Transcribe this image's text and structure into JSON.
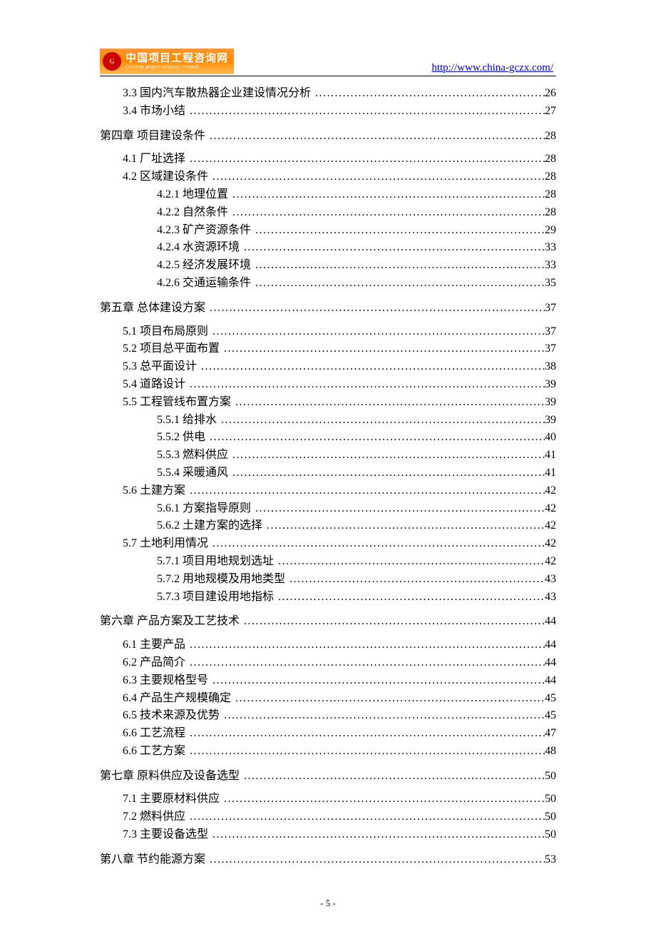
{
  "header": {
    "logo_cn": "中国项目工程咨询网",
    "logo_en": "Chinese project advisory network",
    "logo_mark": "G",
    "url": "http://www.china-gczx.com/"
  },
  "footer": {
    "page_label": "- 5 -"
  },
  "toc": {
    "entries": [
      {
        "level": "1-cont",
        "label": "3.3 国内汽车散热器企业建设情况分析",
        "page": "26"
      },
      {
        "level": "1-cont",
        "label": "3.4 市场小结",
        "page": "27"
      },
      {
        "level": "0",
        "label": "第四章  项目建设条件",
        "page": "28"
      },
      {
        "level": "1",
        "label": "4.1 厂址选择",
        "page": "28"
      },
      {
        "level": "1",
        "label": "4.2 区域建设条件",
        "page": "28"
      },
      {
        "level": "2",
        "label": "4.2.1 地理位置",
        "page": "28"
      },
      {
        "level": "2",
        "label": "4.2.2 自然条件",
        "page": "28"
      },
      {
        "level": "2",
        "label": "4.2.3 矿产资源条件",
        "page": "29"
      },
      {
        "level": "2",
        "label": "4.2.4 水资源环境",
        "page": "33"
      },
      {
        "level": "2",
        "label": "4.2.5 经济发展环境",
        "page": "33"
      },
      {
        "level": "2",
        "label": "4.2.6 交通运输条件",
        "page": "35"
      },
      {
        "level": "0",
        "label": "第五章  总体建设方案",
        "page": "37"
      },
      {
        "level": "1",
        "label": "5.1 项目布局原则",
        "page": "37"
      },
      {
        "level": "1",
        "label": "5.2 项目总平面布置",
        "page": "37"
      },
      {
        "level": "1",
        "label": "5.3 总平面设计",
        "page": "38"
      },
      {
        "level": "1",
        "label": "5.4 道路设计",
        "page": "39"
      },
      {
        "level": "1",
        "label": "5.5 工程管线布置方案",
        "page": "39"
      },
      {
        "level": "2",
        "label": "5.5.1 给排水",
        "page": "39"
      },
      {
        "level": "2",
        "label": "5.5.2 供电",
        "page": "40"
      },
      {
        "level": "2",
        "label": "5.5.3 燃料供应",
        "page": "41"
      },
      {
        "level": "2",
        "label": "5.5.4 采暖通风",
        "page": "41"
      },
      {
        "level": "1",
        "label": "5.6 土建方案",
        "page": "42"
      },
      {
        "level": "2",
        "label": "5.6.1 方案指导原则",
        "page": "42"
      },
      {
        "level": "2",
        "label": "5.6.2 土建方案的选择",
        "page": "42"
      },
      {
        "level": "1",
        "label": "5.7 土地利用情况",
        "page": "42"
      },
      {
        "level": "2",
        "label": "5.7.1 项目用地规划选址",
        "page": "42"
      },
      {
        "level": "2",
        "label": "5.7.2 用地规模及用地类型",
        "page": "43"
      },
      {
        "level": "2",
        "label": "5.7.3 项目建设用地指标",
        "page": "43"
      },
      {
        "level": "0",
        "label": "第六章   产品方案及工艺技术",
        "page": "44"
      },
      {
        "level": "1",
        "label": "6.1 主要产品",
        "page": "44"
      },
      {
        "level": "1",
        "label": "6.2 产品简介",
        "page": "44"
      },
      {
        "level": "1",
        "label": "6.3 主要规格型号",
        "page": "44"
      },
      {
        "level": "1",
        "label": "6.4 产品生产规模确定",
        "page": "45"
      },
      {
        "level": "1",
        "label": "6.5 技术来源及优势",
        "page": "45"
      },
      {
        "level": "1",
        "label": "6.6 工艺流程",
        "page": "47"
      },
      {
        "level": "1",
        "label": "6.6 工艺方案",
        "page": "48"
      },
      {
        "level": "0",
        "label": "第七章  原料供应及设备选型",
        "page": "50"
      },
      {
        "level": "1",
        "label": "7.1 主要原材料供应",
        "page": "50"
      },
      {
        "level": "1",
        "label": "7.2 燃料供应",
        "page": "50"
      },
      {
        "level": "1",
        "label": "7.3 主要设备选型",
        "page": "50"
      },
      {
        "level": "0",
        "label": "第八章  节约能源方案",
        "page": "53"
      }
    ]
  }
}
